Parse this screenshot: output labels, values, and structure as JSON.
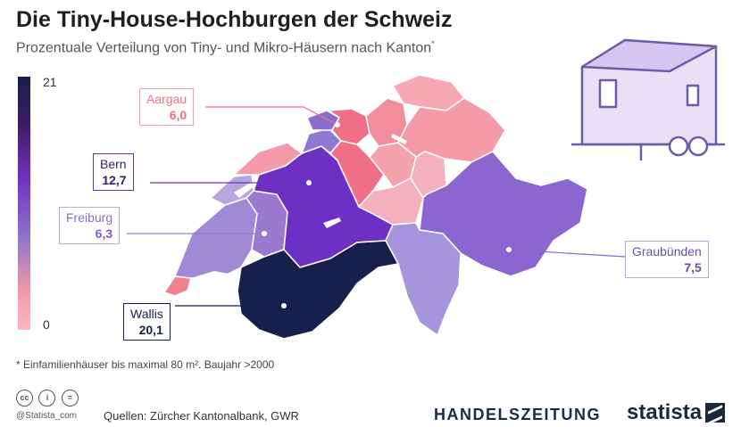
{
  "title": "Die Tiny-House-Hochburgen der Schweiz",
  "subtitle": "Prozentuale Verteilung von Tiny- und Mikro-Häusern nach Kanton",
  "subtitle_mark": "*",
  "legend": {
    "max": "21",
    "min": "0",
    "color_max": "#17204a",
    "color_min": "#ffb7c0"
  },
  "callouts": {
    "aargau": {
      "name": "Aargau",
      "value": "6,0",
      "accent": "#f06f86"
    },
    "bern": {
      "name": "Bern",
      "value": "12,7",
      "accent": "#6d2fc4"
    },
    "freiburg": {
      "name": "Freiburg",
      "value": "6,3",
      "accent": "#9a79d0"
    },
    "graubuenden": {
      "name": "Graubünden",
      "value": "7,5",
      "accent": "#8b65d0"
    },
    "wallis": {
      "name": "Wallis",
      "value": "20,1",
      "accent": "#17204a"
    }
  },
  "footnote": "* Einfamilienhäuser bis maximal 80 m². Baujahr >2000",
  "license_icons": [
    "cc-icon",
    "attribution-icon",
    "no-derivatives-icon"
  ],
  "handle": "@Statista_com",
  "source": "Quellen: Zürcher Kantonalbank, GWR",
  "publisher": "HANDELSZEITUNG",
  "brand": "statista"
}
